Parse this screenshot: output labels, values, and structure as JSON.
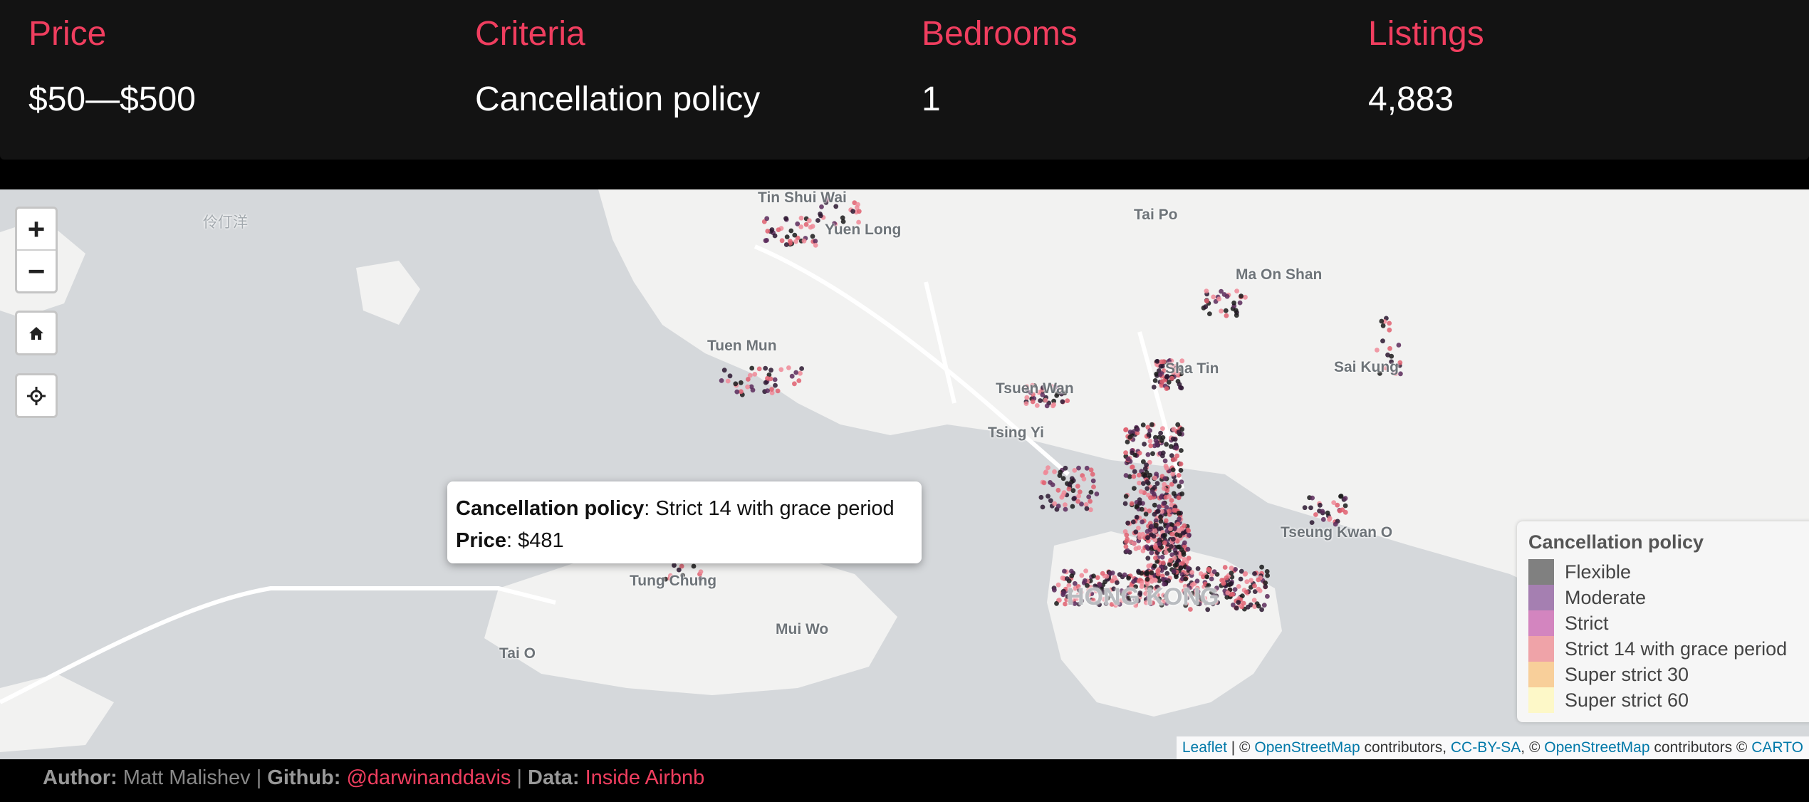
{
  "stats": [
    {
      "label": "Price",
      "value": "$50—$500"
    },
    {
      "label": "Criteria",
      "value": "Cancellation policy"
    },
    {
      "label": "Bedrooms",
      "value": "1"
    },
    {
      "label": "Listings",
      "value": "4,883"
    }
  ],
  "map": {
    "places": [
      "Tin Shui Wai",
      "Yuen Long",
      "Tai Po",
      "Ma On Shan",
      "Tuen Mun",
      "Sai Kung",
      "Sha Tin",
      "Tsuen Wan",
      "Tsing Yi",
      "Tseung Kwan O",
      "Tung Chung",
      "Mui Wo",
      "Tai O",
      "HONG KONG",
      "伶仃洋"
    ],
    "controls": {
      "zoom_in": "+",
      "zoom_out": "−"
    },
    "popup": {
      "policy_label": "Cancellation policy",
      "policy_value": ": Strict 14 with grace period",
      "price_label": "Price",
      "price_value": ": $481"
    },
    "legend": {
      "title": "Cancellation policy",
      "items": [
        {
          "label": "Flexible",
          "color": "#808080"
        },
        {
          "label": "Moderate",
          "color": "#a57fb1"
        },
        {
          "label": "Strict",
          "color": "#d385bf"
        },
        {
          "label": "Strict 14 with grace period",
          "color": "#efa3a8"
        },
        {
          "label": "Super strict 30",
          "color": "#f8cf9a"
        },
        {
          "label": "Super strict 60",
          "color": "#fdf8c8"
        }
      ]
    },
    "attribution": {
      "leaflet": "Leaflet",
      "sep1": " | © ",
      "osm1": "OpenStreetMap",
      "contrib1": " contributors, ",
      "ccbysa": "CC-BY-SA",
      "sep2": ", © ",
      "osm2": "OpenStreetMap",
      "contrib2": " contributors © ",
      "carto": "CARTO"
    }
  },
  "footer": {
    "author_label": "Author:",
    "author": "Matt Malishev",
    "sep1": " | ",
    "github_label": "Github:",
    "github": "@darwinanddavis",
    "sep2": " | ",
    "data_label": "Data:",
    "data": "Inside Airbnb"
  },
  "colors": {
    "accent": "#f03e5f",
    "bar_bg": "#131313",
    "land": "#f2f2f1",
    "water": "#d5d8db"
  }
}
